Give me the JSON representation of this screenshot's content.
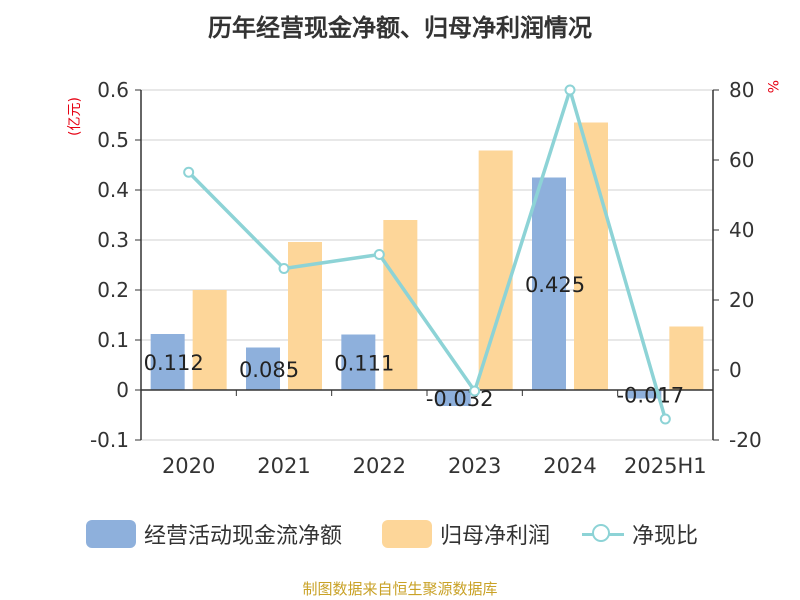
{
  "colors": {
    "cashflow": "#8eb0dc",
    "profit": "#fdd699",
    "ratio": "#8dd3d6",
    "unit": "#e60012",
    "source": "#c9a227"
  },
  "chart_data": {
    "type": "bar",
    "title": "历年经营现金净额、归母净利润情况",
    "categories": [
      "2020",
      "2021",
      "2022",
      "2023",
      "2024",
      "2025H1"
    ],
    "y_left_label": "(亿元)",
    "y_right_label": "%",
    "y_left_ticks": [
      "0.6",
      "0.5",
      "0.4",
      "0.3",
      "0.2",
      "0.1",
      "0",
      "-0.1"
    ],
    "y_right_ticks": [
      "80",
      "60",
      "40",
      "20",
      "0",
      "-20"
    ],
    "ylim_left": [
      -0.1,
      0.6
    ],
    "ylim_right": [
      -20,
      80
    ],
    "grid": true,
    "legend_position": "bottom",
    "series": [
      {
        "name": "经营活动现金流净额",
        "type": "bar",
        "axis": "left",
        "values": [
          0.112,
          0.085,
          0.111,
          -0.032,
          0.425,
          -0.017
        ],
        "labels": [
          "0.112",
          "0.085",
          "0.111",
          "-0.032",
          "0.425",
          "-0.017"
        ]
      },
      {
        "name": "归母净利润",
        "type": "bar",
        "axis": "left",
        "values": [
          0.2,
          0.296,
          0.34,
          0.479,
          0.535,
          0.127
        ]
      },
      {
        "name": "净现比",
        "type": "line",
        "axis": "right",
        "values": [
          56.5,
          29,
          33,
          -6,
          80,
          -14
        ]
      }
    ]
  },
  "source": "制图数据来自恒生聚源数据库"
}
